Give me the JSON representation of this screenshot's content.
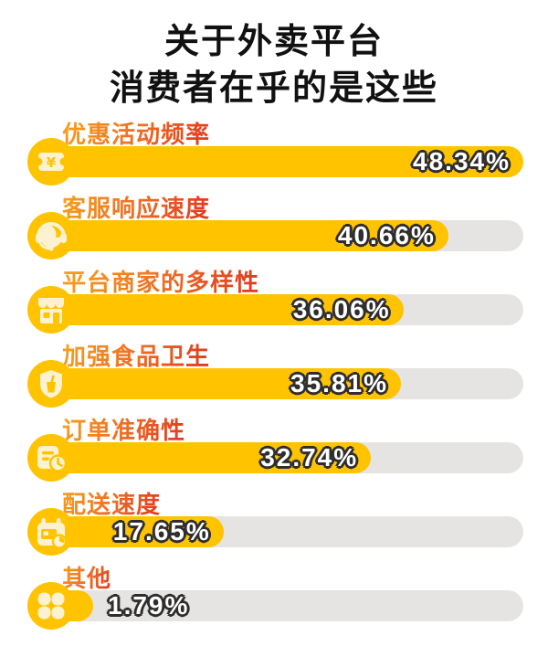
{
  "title": {
    "line1": "关于外卖平台",
    "line2": "消费者在乎的是这些"
  },
  "chart_data": {
    "type": "bar",
    "orientation": "horizontal",
    "title": "关于外卖平台 消费者在乎的是这些",
    "unit": "%",
    "max_value_full_bar": 48.34,
    "categories": [
      "优惠活动频率",
      "客服响应速度",
      "平台商家的多样性",
      "加强食品卫生",
      "订单准确性",
      "配送速度",
      "其他"
    ],
    "values": [
      48.34,
      40.66,
      36.06,
      35.81,
      32.74,
      17.65,
      1.79
    ],
    "value_labels": [
      "48.34%",
      "40.66%",
      "36.06%",
      "35.81%",
      "32.74%",
      "17.65%",
      "1.79%"
    ],
    "icons": [
      "coupon-ticket-icon",
      "customer-service-headset-icon",
      "storefront-icon",
      "hygiene-shield-icon",
      "order-clock-icon",
      "delivery-calendar-clock-icon",
      "flower-other-icon"
    ],
    "colors": {
      "bar_fill": "#FFC300",
      "bar_track": "#E6E4E2",
      "icon_circle": "#FFC300",
      "icon_glyph": "#FBF2D0",
      "category_gradient_start": "#F9A21B",
      "category_gradient_end": "#E0341E",
      "value_text": "#FFFFFF",
      "value_outline": "#2E2E2E",
      "title_text": "#111111",
      "background": "#FFFFFF"
    },
    "legend": "none",
    "grid": false
  }
}
